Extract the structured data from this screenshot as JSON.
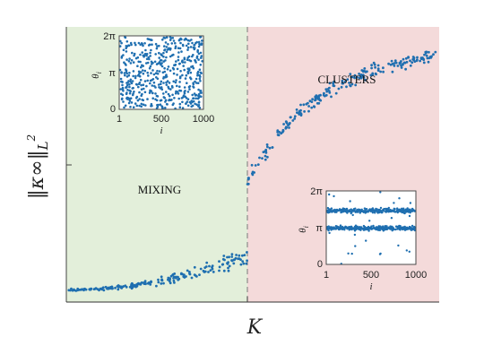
{
  "chart_data": [
    {
      "type": "scatter",
      "role": "main",
      "xlabel": "K",
      "ylabel": "‖κ∞‖L²",
      "ylabel_parts": {
        "norm": "κ∞",
        "sub": "L",
        "sup": "2"
      },
      "regions": [
        {
          "label": "MIXING",
          "color": "#e3efda",
          "side": "left"
        },
        {
          "label": "CLUSTERS",
          "color": "#f4dada",
          "side": "right"
        }
      ],
      "threshold_line": {
        "style": "dashed",
        "color": "#7a7a7a"
      },
      "point_color": "#1f6fb0",
      "axis_ticks_shown": false,
      "series": [
        {
          "trend_description_values": {
            "x_range": [
              0,
              1
            ],
            "y_range": [
              0,
              1
            ],
            "threshold_x": 0.49,
            "mixing_y_start": 0.045,
            "mixing_y_end": 0.2,
            "clusters_y_start": 0.44,
            "clusters_y_end": 0.93
          }
        }
      ]
    },
    {
      "type": "scatter",
      "role": "inset",
      "region": "MIXING",
      "xlabel": "i",
      "ylabel": "θi",
      "ylabel_parts": {
        "base": "θ",
        "sub": "i"
      },
      "xticks": [
        "1",
        "500",
        "1000"
      ],
      "yticks": [
        "0",
        "π",
        "2π"
      ],
      "xlim": [
        1,
        1000
      ],
      "ylim": [
        0,
        6.283
      ],
      "distribution": "uniform"
    },
    {
      "type": "scatter",
      "role": "inset",
      "region": "CLUSTERS",
      "xlabel": "i",
      "ylabel": "θi",
      "ylabel_parts": {
        "base": "θ",
        "sub": "i"
      },
      "xticks": [
        "1",
        "500",
        "1000"
      ],
      "yticks": [
        "0",
        "π",
        "2π"
      ],
      "xlim": [
        1,
        1000
      ],
      "ylim": [
        0,
        6.283
      ],
      "distribution": "two-clusters",
      "cluster_centers": [
        4.6,
        3.1
      ]
    }
  ]
}
